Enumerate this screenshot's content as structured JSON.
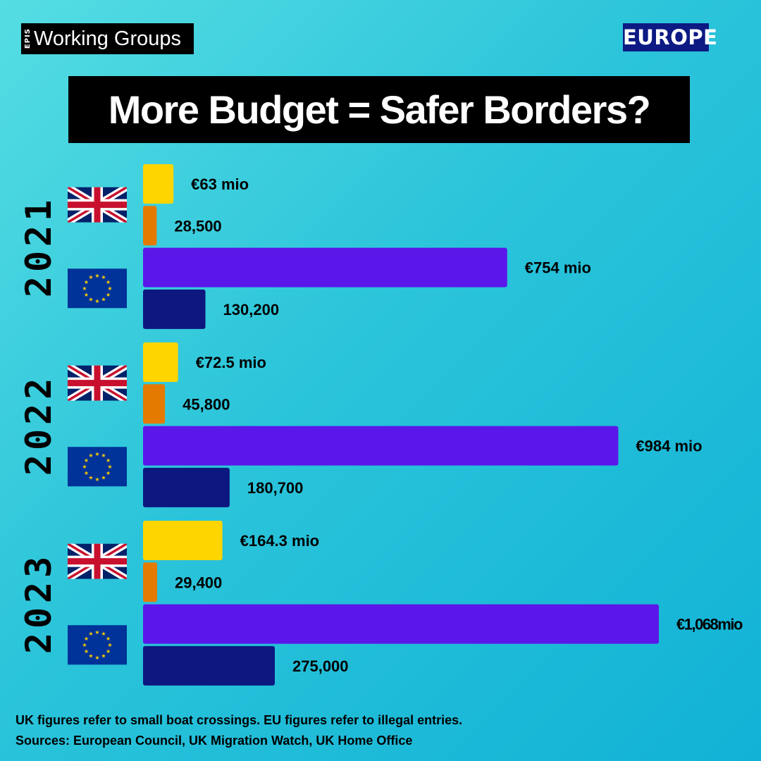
{
  "header": {
    "logo_small": "EPIS",
    "logo_main": "Working Groups",
    "region": "EUROPE",
    "title": "More Budget = Safer Borders?"
  },
  "chart_data": {
    "type": "bar",
    "orientation": "horizontal",
    "groups": [
      {
        "year": "2021",
        "rows": [
          {
            "entity": "UK",
            "metric": "budget",
            "value": 63,
            "label": "€63 mio",
            "color": "#ffd500"
          },
          {
            "entity": "UK",
            "metric": "crossings",
            "value": 28500,
            "label": "28,500",
            "color": "#e47b00"
          },
          {
            "entity": "EU",
            "metric": "budget",
            "value": 754,
            "label": "€754 mio",
            "color": "#5b17ea"
          },
          {
            "entity": "EU",
            "metric": "crossings",
            "value": 130200,
            "label": "130,200",
            "color": "#0d1780"
          }
        ]
      },
      {
        "year": "2022",
        "rows": [
          {
            "entity": "UK",
            "metric": "budget",
            "value": 72.5,
            "label": "€72.5 mio",
            "color": "#ffd500"
          },
          {
            "entity": "UK",
            "metric": "crossings",
            "value": 45800,
            "label": "45,800",
            "color": "#e47b00"
          },
          {
            "entity": "EU",
            "metric": "budget",
            "value": 984,
            "label": "€984 mio",
            "color": "#5b17ea"
          },
          {
            "entity": "EU",
            "metric": "crossings",
            "value": 180700,
            "label": "180,700",
            "color": "#0d1780"
          }
        ]
      },
      {
        "year": "2023",
        "rows": [
          {
            "entity": "UK",
            "metric": "budget",
            "value": 164.3,
            "label": "€164.3 mio",
            "color": "#ffd500"
          },
          {
            "entity": "UK",
            "metric": "crossings",
            "value": 29400,
            "label": "29,400",
            "color": "#e47b00"
          },
          {
            "entity": "EU",
            "metric": "budget",
            "value": 1068,
            "label": "€1,068mio",
            "color": "#5b17ea"
          },
          {
            "entity": "EU",
            "metric": "crossings",
            "value": 275000,
            "label": "275,000",
            "color": "#0d1780"
          }
        ]
      }
    ],
    "budget_scale_max": 1068,
    "crossings_scale_max": 275000,
    "grid": false,
    "legend": "none"
  },
  "footnote": {
    "line1": "UK figures refer to small boat crossings. EU figures refer to illegal entries.",
    "line2": "Sources: European Council, UK Migration Watch, UK Home Office"
  }
}
